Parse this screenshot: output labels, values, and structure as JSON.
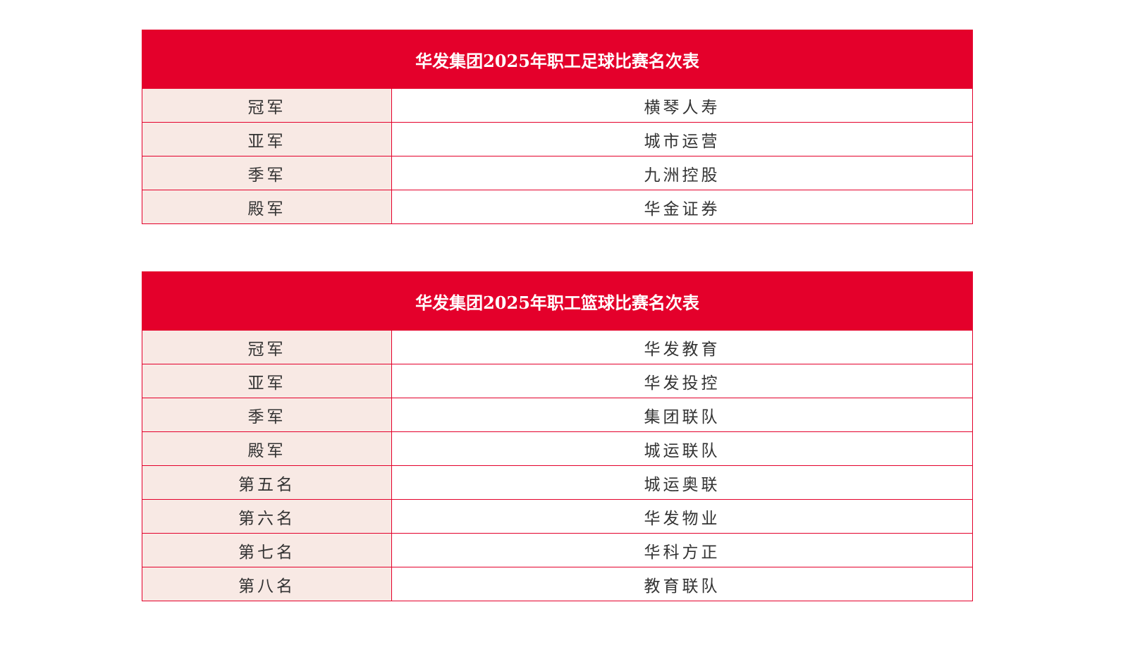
{
  "football": {
    "title": "华发集团2025年职工足球比赛名次表",
    "rows": [
      {
        "rank": "冠军",
        "team": "横琴人寿"
      },
      {
        "rank": "亚军",
        "team": "城市运营"
      },
      {
        "rank": "季军",
        "team": "九洲控股"
      },
      {
        "rank": "殿军",
        "team": "华金证券"
      }
    ]
  },
  "basketball": {
    "title": "华发集团2025年职工篮球比赛名次表",
    "rows": [
      {
        "rank": "冠军",
        "team": "华发教育"
      },
      {
        "rank": "亚军",
        "team": "华发投控"
      },
      {
        "rank": "季军",
        "team": "集团联队"
      },
      {
        "rank": "殿军",
        "team": "城运联队"
      },
      {
        "rank": "第五名",
        "team": "城运奥联"
      },
      {
        "rank": "第六名",
        "team": "华发物业"
      },
      {
        "rank": "第七名",
        "team": "华科方正"
      },
      {
        "rank": "第八名",
        "team": "教育联队"
      }
    ]
  },
  "colors": {
    "header": "#e4002b",
    "rank_cell": "#f8e9e4",
    "border": "#e4002b"
  }
}
